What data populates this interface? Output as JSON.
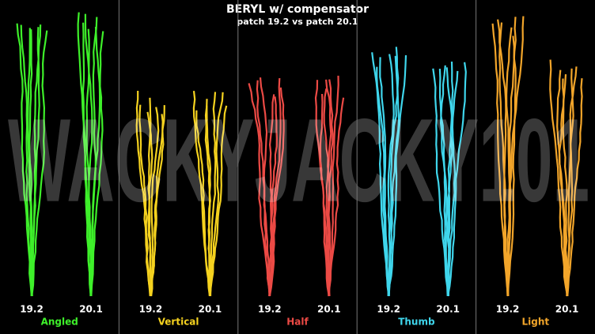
{
  "header": {
    "title": "BERYL w/ compensator",
    "subtitle": "patch 19.2 vs patch 20.1"
  },
  "watermark": "WACKYJACKY101",
  "panels": [
    {
      "name": "Angled",
      "color": "#3ef02a",
      "patches": [
        "19.2",
        "20.1"
      ]
    },
    {
      "name": "Vertical",
      "color": "#f5d21f",
      "patches": [
        "19.2",
        "20.1"
      ]
    },
    {
      "name": "Half",
      "color": "#ec4a45",
      "patches": [
        "19.2",
        "20.1"
      ]
    },
    {
      "name": "Thumb",
      "color": "#3fd6ec",
      "patches": [
        "19.2",
        "20.1"
      ]
    },
    {
      "name": "Light",
      "color": "#f2a52a",
      "patches": [
        "19.2",
        "20.1"
      ]
    }
  ]
}
